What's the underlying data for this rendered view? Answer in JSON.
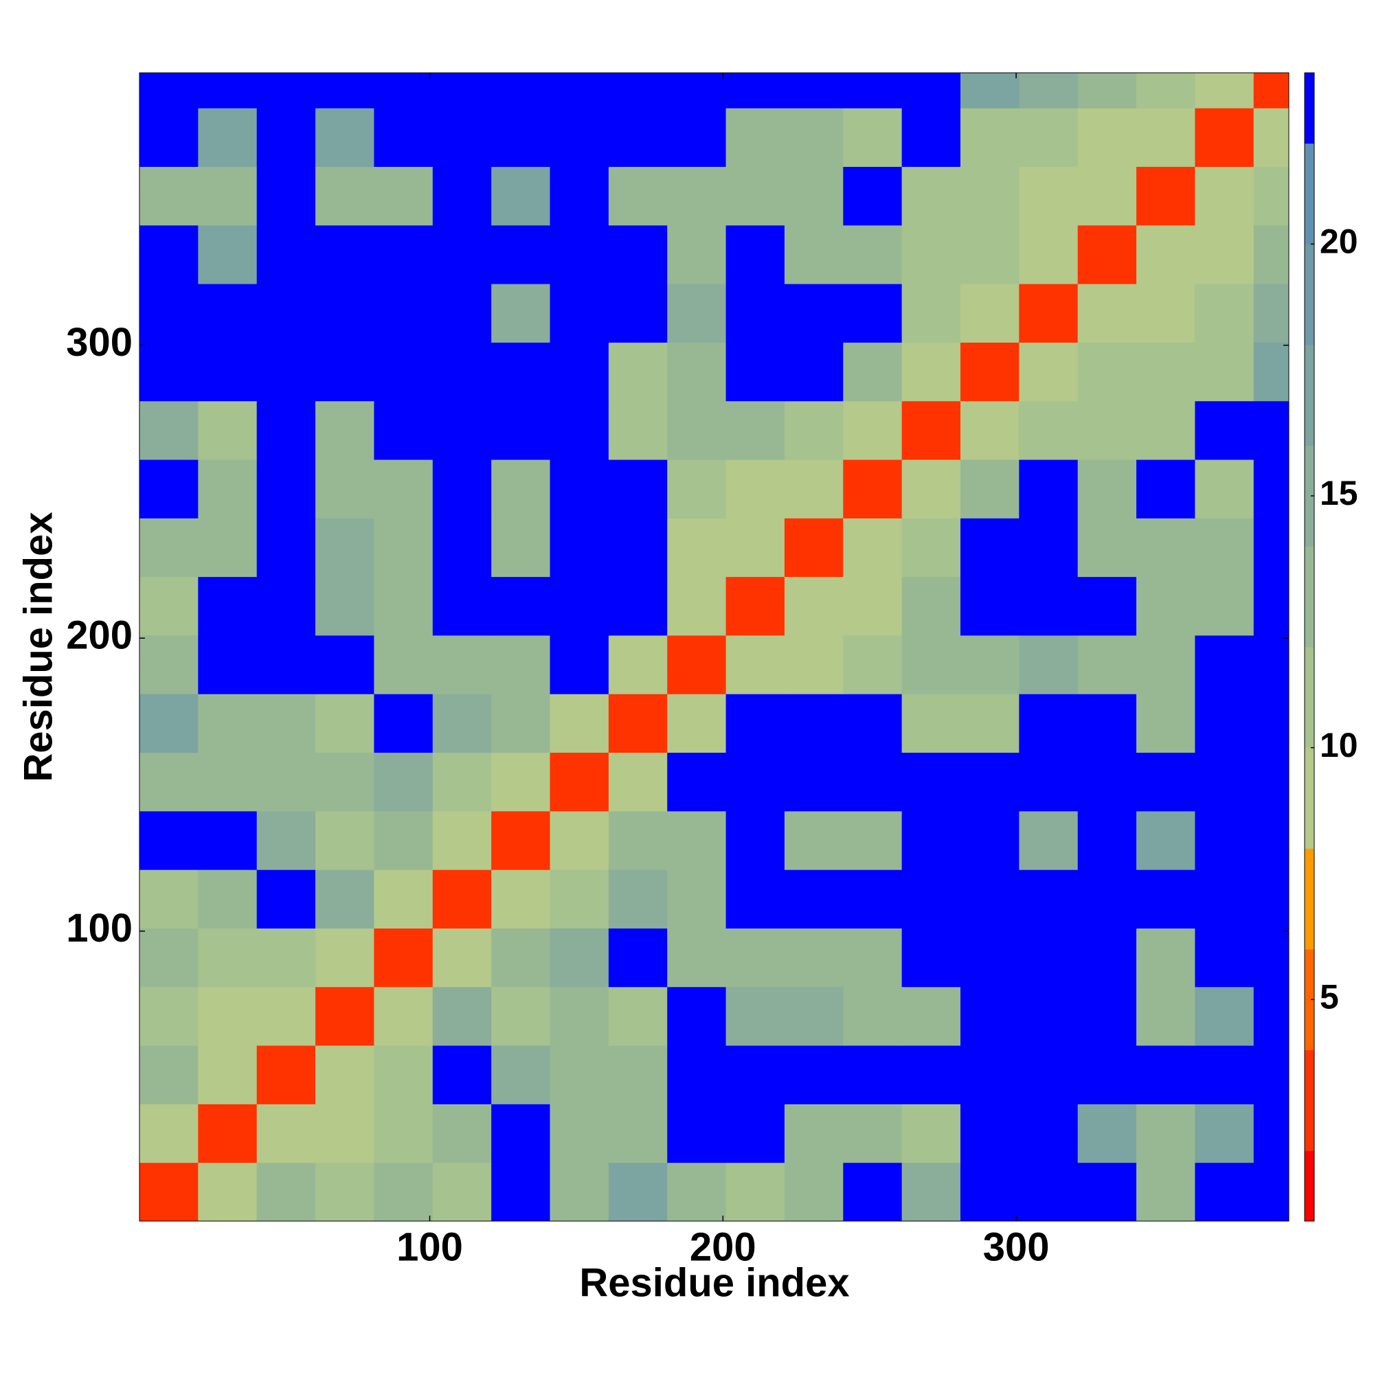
{
  "chart_data": {
    "type": "heatmap",
    "x_label": "Residue index",
    "y_label": "Residue index",
    "xlim": [
      1,
      393
    ],
    "ylim": [
      1,
      393
    ],
    "xticks": [
      100,
      200,
      300
    ],
    "yticks": [
      100,
      200,
      300
    ],
    "x_bins": [
      1,
      21,
      41,
      61,
      81,
      101,
      121,
      141,
      161,
      181,
      201,
      221,
      241,
      261,
      281,
      301,
      321,
      341,
      361,
      381,
      393
    ],
    "y_bins": [
      1,
      21,
      41,
      61,
      81,
      101,
      121,
      141,
      161,
      181,
      201,
      221,
      241,
      261,
      281,
      301,
      321,
      341,
      361,
      381,
      393
    ],
    "z": [
      [
        4,
        10,
        14,
        12,
        14,
        12,
        23,
        14,
        18,
        14,
        12,
        14,
        23,
        16,
        23,
        23,
        23,
        14,
        23,
        23
      ],
      [
        10,
        4,
        10,
        10,
        12,
        14,
        23,
        14,
        14,
        23,
        23,
        14,
        14,
        12,
        23,
        23,
        18,
        14,
        18,
        23
      ],
      [
        14,
        10,
        4,
        10,
        12,
        23,
        16,
        14,
        14,
        23,
        23,
        23,
        23,
        23,
        23,
        23,
        23,
        23,
        23,
        23
      ],
      [
        12,
        10,
        10,
        4,
        10,
        16,
        12,
        14,
        12,
        23,
        16,
        16,
        14,
        14,
        23,
        23,
        23,
        14,
        18,
        23
      ],
      [
        14,
        12,
        12,
        10,
        4,
        10,
        14,
        16,
        23,
        14,
        14,
        14,
        14,
        23,
        23,
        23,
        23,
        14,
        23,
        23
      ],
      [
        12,
        14,
        23,
        16,
        10,
        4,
        10,
        12,
        16,
        14,
        23,
        23,
        23,
        23,
        23,
        23,
        23,
        23,
        23,
        23
      ],
      [
        23,
        23,
        16,
        12,
        14,
        10,
        4,
        10,
        14,
        14,
        23,
        14,
        14,
        23,
        23,
        16,
        23,
        18,
        23,
        23
      ],
      [
        14,
        14,
        14,
        14,
        16,
        12,
        10,
        4,
        10,
        23,
        23,
        23,
        23,
        23,
        23,
        23,
        23,
        23,
        23,
        23
      ],
      [
        18,
        14,
        14,
        12,
        23,
        16,
        14,
        10,
        4,
        10,
        23,
        23,
        23,
        12,
        12,
        23,
        23,
        14,
        23,
        23
      ],
      [
        14,
        23,
        23,
        23,
        14,
        14,
        14,
        23,
        10,
        4,
        10,
        10,
        12,
        14,
        14,
        16,
        14,
        14,
        23,
        23
      ],
      [
        12,
        23,
        23,
        16,
        14,
        23,
        23,
        23,
        23,
        10,
        4,
        10,
        10,
        14,
        23,
        23,
        23,
        14,
        14,
        23
      ],
      [
        14,
        14,
        23,
        16,
        14,
        23,
        14,
        23,
        23,
        10,
        10,
        4,
        10,
        12,
        23,
        23,
        14,
        14,
        14,
        23
      ],
      [
        23,
        14,
        23,
        14,
        14,
        23,
        14,
        23,
        23,
        12,
        10,
        10,
        4,
        10,
        14,
        23,
        14,
        23,
        12,
        23
      ],
      [
        16,
        12,
        23,
        14,
        23,
        23,
        23,
        23,
        12,
        14,
        14,
        12,
        10,
        4,
        10,
        12,
        12,
        12,
        23,
        23
      ],
      [
        23,
        23,
        23,
        23,
        23,
        23,
        23,
        23,
        12,
        14,
        23,
        23,
        14,
        10,
        4,
        10,
        12,
        12,
        12,
        18
      ],
      [
        23,
        23,
        23,
        23,
        23,
        23,
        16,
        23,
        23,
        16,
        23,
        23,
        23,
        12,
        10,
        4,
        10,
        10,
        12,
        16
      ],
      [
        23,
        18,
        23,
        23,
        23,
        23,
        23,
        23,
        23,
        14,
        23,
        14,
        14,
        12,
        12,
        10,
        4,
        10,
        10,
        14
      ],
      [
        14,
        14,
        23,
        14,
        14,
        23,
        18,
        23,
        14,
        14,
        14,
        14,
        23,
        12,
        12,
        10,
        10,
        4,
        10,
        12
      ],
      [
        23,
        18,
        23,
        18,
        23,
        23,
        23,
        23,
        23,
        23,
        14,
        14,
        12,
        23,
        12,
        12,
        10,
        10,
        4,
        10
      ],
      [
        23,
        23,
        23,
        23,
        23,
        23,
        23,
        23,
        23,
        23,
        23,
        23,
        23,
        23,
        18,
        16,
        14,
        12,
        10,
        4
      ]
    ],
    "colorbar": {
      "zlim": [
        0.6,
        23.4
      ],
      "zticks": [
        5,
        10,
        15,
        20
      ],
      "bounds": [
        0.6,
        2,
        4,
        6,
        8,
        10,
        12,
        14,
        16,
        18,
        20,
        22,
        23.4
      ],
      "colors": [
        "#ff0000",
        "#ff3300",
        "#ff6600",
        "#ff9900",
        "#b4c98a",
        "#a6c28f",
        "#98b894",
        "#8aae9a",
        "#7ca4a0",
        "#6e99a8",
        "#6290b0",
        "#0000ff"
      ]
    }
  }
}
